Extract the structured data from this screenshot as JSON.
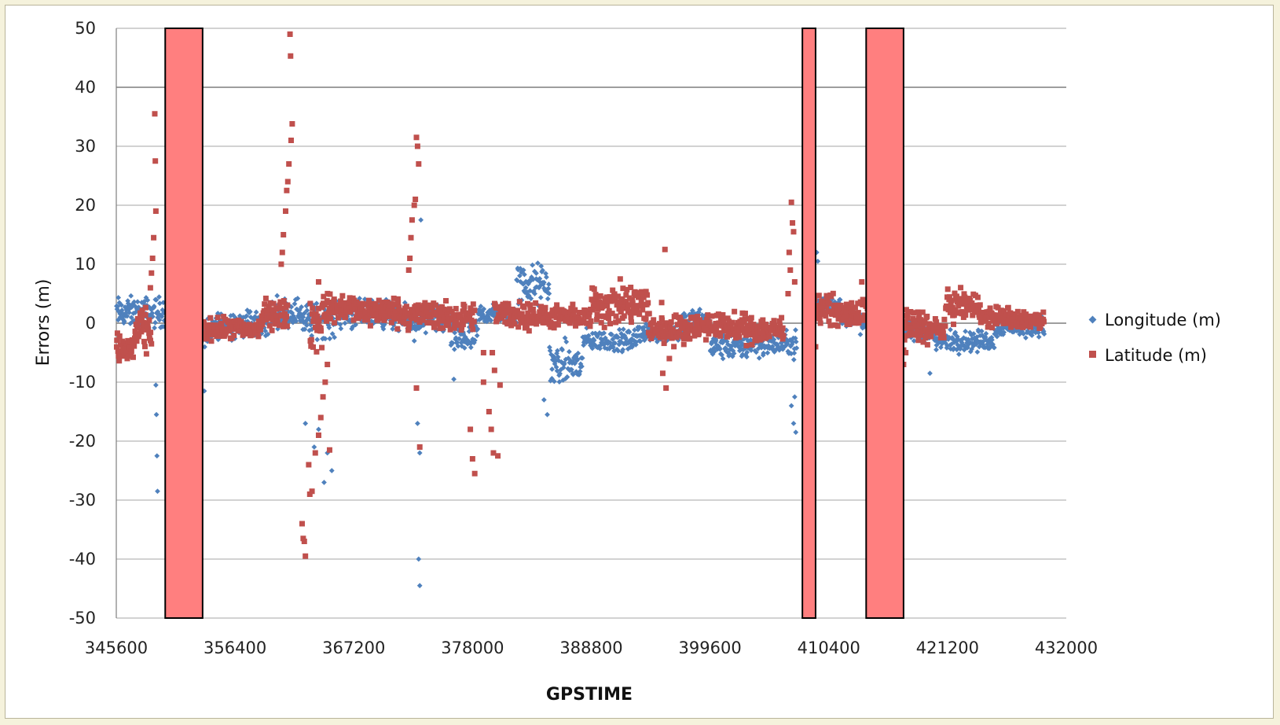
{
  "chart_data": {
    "type": "scatter",
    "title": "",
    "xlabel": "GPSTIME",
    "ylabel": "Errors (m)",
    "xlim": [
      345600,
      432000
    ],
    "ylim": [
      -50,
      50
    ],
    "xticks": [
      345600,
      356400,
      367200,
      378000,
      388800,
      399600,
      410400,
      421200,
      432000
    ],
    "yticks": [
      -50,
      -40,
      -30,
      -20,
      -10,
      0,
      10,
      20,
      30,
      40,
      50
    ],
    "grid": true,
    "legend_position": "right",
    "series": [
      {
        "name": "Longitude (m)",
        "color": "#4f81bd",
        "marker": "diamond",
        "segments": [
          [
            345600,
            350050,
            1.8,
            2.2
          ],
          [
            351000,
            352000,
            -3,
            2.5
          ],
          [
            352800,
            354500,
            -2,
            2.0
          ],
          [
            354500,
            359500,
            0,
            2.0
          ],
          [
            359500,
            362500,
            2,
            2.0
          ],
          [
            362500,
            365500,
            0.5,
            2.5
          ],
          [
            365500,
            370800,
            1.5,
            2.0
          ],
          [
            370800,
            376000,
            0.5,
            2.0
          ],
          [
            376000,
            378500,
            -2.5,
            2.5
          ],
          [
            378500,
            382000,
            1.5,
            1.5
          ],
          [
            382000,
            385000,
            6.5,
            3.0
          ],
          [
            385000,
            388000,
            -7,
            3.0
          ],
          [
            388000,
            393000,
            -3,
            1.5
          ],
          [
            393000,
            397000,
            -1.5,
            1.5
          ],
          [
            397000,
            399600,
            0.5,
            1.5
          ],
          [
            399600,
            403000,
            -4,
            1.8
          ],
          [
            403000,
            407500,
            -3.5,
            1.8
          ],
          [
            408800,
            411500,
            3,
            1.5
          ],
          [
            411500,
            413000,
            1,
            1.5
          ],
          [
            413000,
            417000,
            0,
            1.5
          ],
          [
            417000,
            420000,
            -1.5,
            1.5
          ],
          [
            420000,
            425500,
            -3,
            1.5
          ],
          [
            425500,
            430000,
            -0.5,
            1.5
          ]
        ],
        "outliers": [
          [
            349200,
            -10.5
          ],
          [
            349250,
            -15.5
          ],
          [
            349300,
            -22.5
          ],
          [
            349350,
            -28.5
          ],
          [
            353600,
            -11.5
          ],
          [
            362800,
            -17
          ],
          [
            363600,
            -21
          ],
          [
            364000,
            -18
          ],
          [
            364500,
            -27
          ],
          [
            364800,
            -22
          ],
          [
            365200,
            -25
          ],
          [
            373100,
            -40
          ],
          [
            373200,
            -44.5
          ],
          [
            373000,
            -17
          ],
          [
            373200,
            -22
          ],
          [
            373300,
            17.5
          ],
          [
            372700,
            -3
          ],
          [
            384500,
            -13
          ],
          [
            384800,
            -15.5
          ],
          [
            376300,
            -9.5
          ],
          [
            407000,
            -14
          ],
          [
            407200,
            -17
          ],
          [
            407400,
            -18.5
          ],
          [
            407300,
            -12.5
          ],
          [
            409300,
            12
          ],
          [
            409400,
            10.5
          ],
          [
            419600,
            -8.5
          ]
        ]
      },
      {
        "name": "Latitude (m)",
        "color": "#c0504d",
        "marker": "square",
        "segments": [
          [
            345600,
            347200,
            -4.5,
            2.5
          ],
          [
            347200,
            348800,
            -1.5,
            3.0
          ],
          [
            351200,
            353200,
            -1.0,
            2.5
          ],
          [
            353200,
            358800,
            -1.0,
            1.5
          ],
          [
            358800,
            361200,
            1.5,
            2.0
          ],
          [
            363200,
            364300,
            0.0,
            4.0
          ],
          [
            364300,
            367500,
            2.5,
            2.0
          ],
          [
            367500,
            371500,
            2.0,
            2.0
          ],
          [
            371500,
            375000,
            1.5,
            2.0
          ],
          [
            375000,
            378200,
            1.0,
            2.0
          ],
          [
            380000,
            383800,
            1.5,
            2.0
          ],
          [
            383800,
            388800,
            1.0,
            1.5
          ],
          [
            388800,
            394000,
            3.0,
            3.0
          ],
          [
            394000,
            397500,
            -1.0,
            2.0
          ],
          [
            397500,
            401500,
            -0.5,
            1.8
          ],
          [
            401500,
            406300,
            -1.0,
            2.0
          ],
          [
            408700,
            411000,
            2.5,
            2.0
          ],
          [
            411000,
            414200,
            1.5,
            2.0
          ],
          [
            416500,
            419500,
            -0.5,
            2.5
          ],
          [
            419500,
            421000,
            -1.0,
            1.5
          ],
          [
            421000,
            424200,
            3.0,
            2.0
          ],
          [
            424200,
            427000,
            1.0,
            1.5
          ],
          [
            427000,
            430000,
            0.5,
            1.2
          ]
        ],
        "outliers": [
          [
            349100,
            35.5
          ],
          [
            349150,
            27.5
          ],
          [
            349200,
            19
          ],
          [
            349000,
            14.5
          ],
          [
            348900,
            11
          ],
          [
            348800,
            8.5
          ],
          [
            348700,
            6
          ],
          [
            361400,
            49
          ],
          [
            361450,
            45.3
          ],
          [
            361600,
            33.8
          ],
          [
            361500,
            31
          ],
          [
            361300,
            27
          ],
          [
            361200,
            24
          ],
          [
            361100,
            22.5
          ],
          [
            361000,
            19
          ],
          [
            360800,
            15
          ],
          [
            360700,
            12
          ],
          [
            360600,
            10
          ],
          [
            364000,
            7
          ],
          [
            362500,
            -34
          ],
          [
            362600,
            -36.5
          ],
          [
            362700,
            -37
          ],
          [
            362800,
            -39.5
          ],
          [
            363200,
            -29
          ],
          [
            363400,
            -28.5
          ],
          [
            363100,
            -24
          ],
          [
            363700,
            -22
          ],
          [
            364000,
            -19
          ],
          [
            364200,
            -16
          ],
          [
            364400,
            -12.5
          ],
          [
            364600,
            -10
          ],
          [
            364800,
            -7
          ],
          [
            365000,
            -21.5
          ],
          [
            372900,
            31.5
          ],
          [
            373000,
            30
          ],
          [
            373100,
            27
          ],
          [
            372800,
            21
          ],
          [
            372700,
            20
          ],
          [
            372500,
            17.5
          ],
          [
            372400,
            14.5
          ],
          [
            372300,
            11
          ],
          [
            372200,
            9
          ],
          [
            372900,
            -11
          ],
          [
            373200,
            -21
          ],
          [
            379000,
            -10
          ],
          [
            379500,
            -15
          ],
          [
            379700,
            -18
          ],
          [
            379900,
            -22
          ],
          [
            377800,
            -18
          ],
          [
            378000,
            -23
          ],
          [
            378200,
            -25.5
          ],
          [
            380300,
            -22.5
          ],
          [
            380500,
            -10.5
          ],
          [
            380000,
            -8
          ],
          [
            379800,
            -5
          ],
          [
            379000,
            -5
          ],
          [
            395500,
            12.5
          ],
          [
            395200,
            3.5
          ],
          [
            395300,
            -8.5
          ],
          [
            395600,
            -11
          ],
          [
            395900,
            -6
          ],
          [
            407000,
            20.5
          ],
          [
            407100,
            17
          ],
          [
            407200,
            15.5
          ],
          [
            406800,
            12
          ],
          [
            406900,
            9
          ],
          [
            407300,
            7
          ],
          [
            406700,
            5
          ],
          [
            409200,
            -4
          ],
          [
            409300,
            1.5
          ],
          [
            413400,
            7
          ],
          [
            413500,
            4
          ],
          [
            417200,
            -7
          ],
          [
            417400,
            -5
          ]
        ]
      }
    ],
    "shaded_regions": [
      {
        "x_start": 350050,
        "x_end": 353450,
        "color": "#ff7f7f"
      },
      {
        "x_start": 408000,
        "x_end": 409200,
        "color": "#ff7f7f"
      },
      {
        "x_start": 413800,
        "x_end": 417200,
        "color": "#ff7f7f"
      }
    ]
  }
}
